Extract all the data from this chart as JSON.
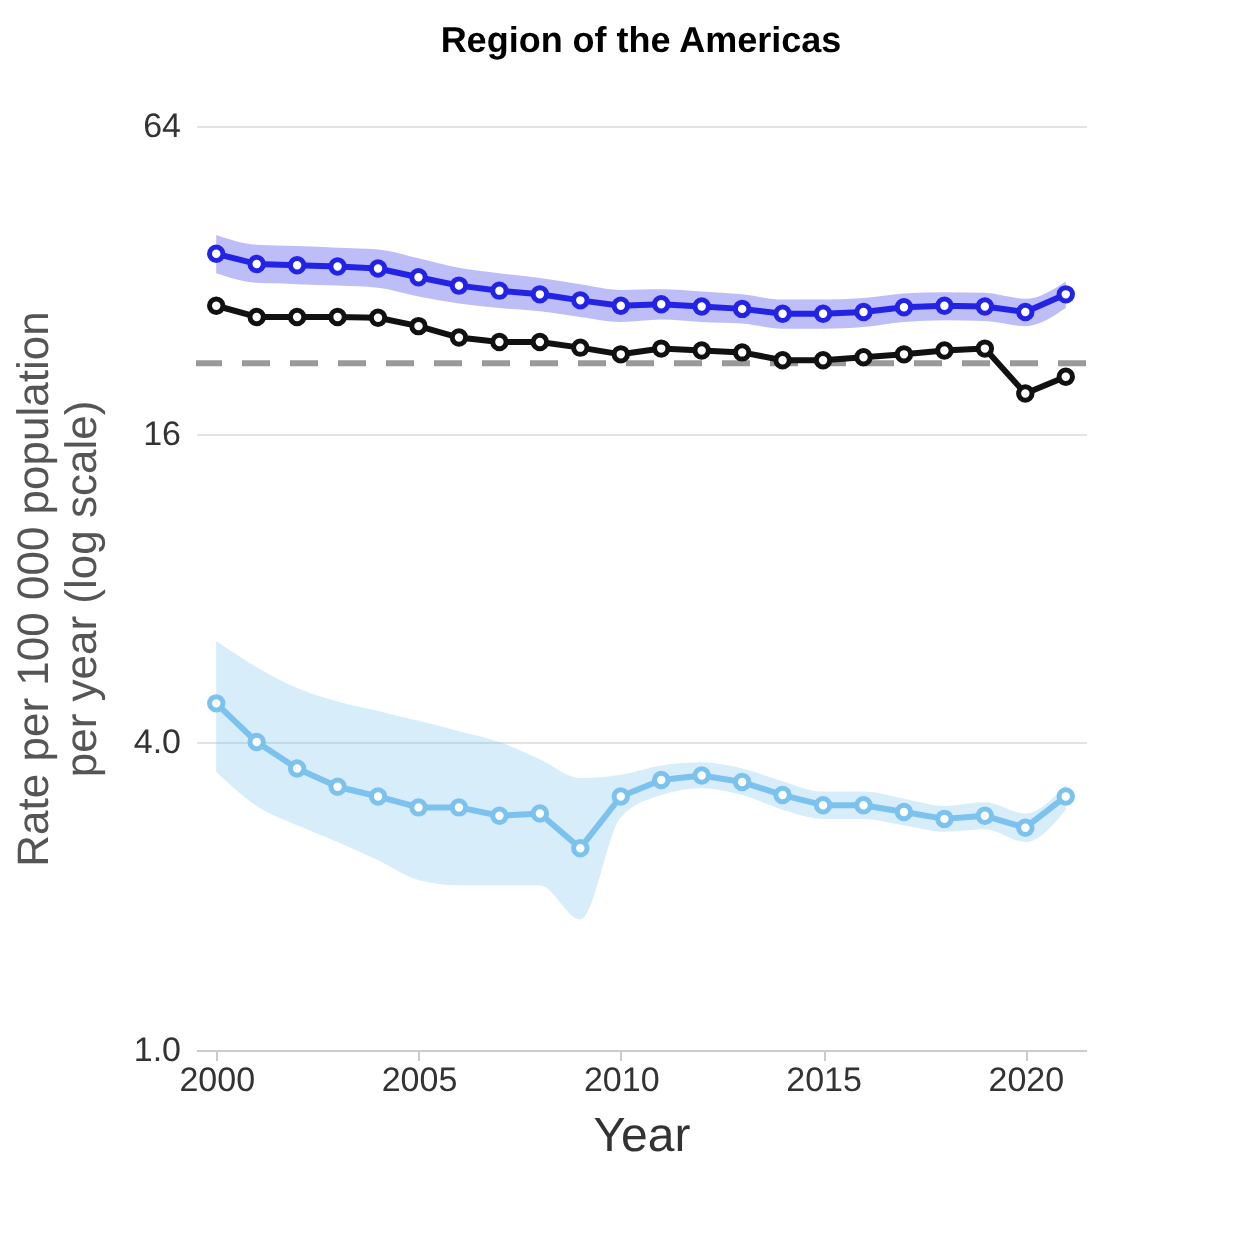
{
  "chart_data": {
    "type": "line",
    "title": "Region of the Americas",
    "xlabel": "Year",
    "ylabel": "Rate per 100 000 population per year (log scale)",
    "x": [
      2000,
      2001,
      2002,
      2003,
      2004,
      2005,
      2006,
      2007,
      2008,
      2009,
      2010,
      2011,
      2012,
      2013,
      2014,
      2015,
      2016,
      2017,
      2018,
      2019,
      2020,
      2021
    ],
    "series": [
      {
        "color": "#2323e6",
        "values": [
          36.0,
          34.4,
          34.2,
          34.0,
          33.7,
          32.4,
          31.2,
          30.5,
          30.0,
          29.2,
          28.5,
          28.7,
          28.4,
          28.1,
          27.5,
          27.5,
          27.7,
          28.3,
          28.5,
          28.4,
          27.7,
          30.0
        ],
        "upper": [
          39.2,
          37.5,
          37.3,
          37.0,
          36.7,
          35.3,
          33.8,
          33.0,
          32.3,
          31.4,
          30.6,
          30.7,
          30.4,
          30.0,
          29.3,
          29.3,
          29.5,
          30.1,
          30.3,
          30.2,
          29.4,
          31.8
        ],
        "lower": [
          33.0,
          31.6,
          31.4,
          31.2,
          30.9,
          29.7,
          28.8,
          28.2,
          27.8,
          27.1,
          26.5,
          26.8,
          26.5,
          26.3,
          25.7,
          25.7,
          25.9,
          26.5,
          26.7,
          26.6,
          26.0,
          28.2
        ]
      },
      {
        "color": "#111111",
        "values": [
          28.5,
          27.1,
          27.1,
          27.1,
          27.0,
          26.0,
          24.7,
          24.2,
          24.2,
          23.6,
          22.9,
          23.5,
          23.3,
          23.1,
          22.3,
          22.3,
          22.6,
          22.9,
          23.3,
          23.5,
          19.2,
          20.7
        ]
      },
      {
        "color": "#7cc2ef",
        "values": [
          4.76,
          4.0,
          3.55,
          3.27,
          3.13,
          2.98,
          2.98,
          2.87,
          2.9,
          2.48,
          3.13,
          3.37,
          3.44,
          3.34,
          3.15,
          3.01,
          3.01,
          2.92,
          2.83,
          2.87,
          2.72,
          3.13
        ],
        "upper": [
          6.3,
          5.6,
          5.1,
          4.8,
          4.6,
          4.4,
          4.2,
          4.0,
          3.7,
          3.4,
          3.45,
          3.6,
          3.65,
          3.55,
          3.35,
          3.2,
          3.2,
          3.1,
          3.0,
          3.05,
          2.9,
          3.3
        ],
        "lower": [
          3.5,
          3.0,
          2.75,
          2.55,
          2.35,
          2.15,
          2.1,
          2.1,
          2.1,
          1.8,
          2.85,
          3.15,
          3.25,
          3.15,
          2.95,
          2.83,
          2.83,
          2.75,
          2.67,
          2.7,
          2.55,
          2.95
        ]
      }
    ],
    "log": true,
    "ylim": [
      1,
      64
    ],
    "yticks": [
      {
        "value": 1,
        "label": "1.0"
      },
      {
        "value": 4,
        "label": "4.0"
      },
      16,
      64
    ],
    "xlim": [
      1999.5,
      2021.5
    ],
    "xticks": [
      2000,
      2005,
      2010,
      2015,
      2020
    ],
    "ref_lines": [
      {
        "axis": "y",
        "value": 22.0,
        "color": "#999999",
        "line_style": "dashed"
      }
    ],
    "grid": "y",
    "marker": "circle",
    "line_style": "solid"
  }
}
